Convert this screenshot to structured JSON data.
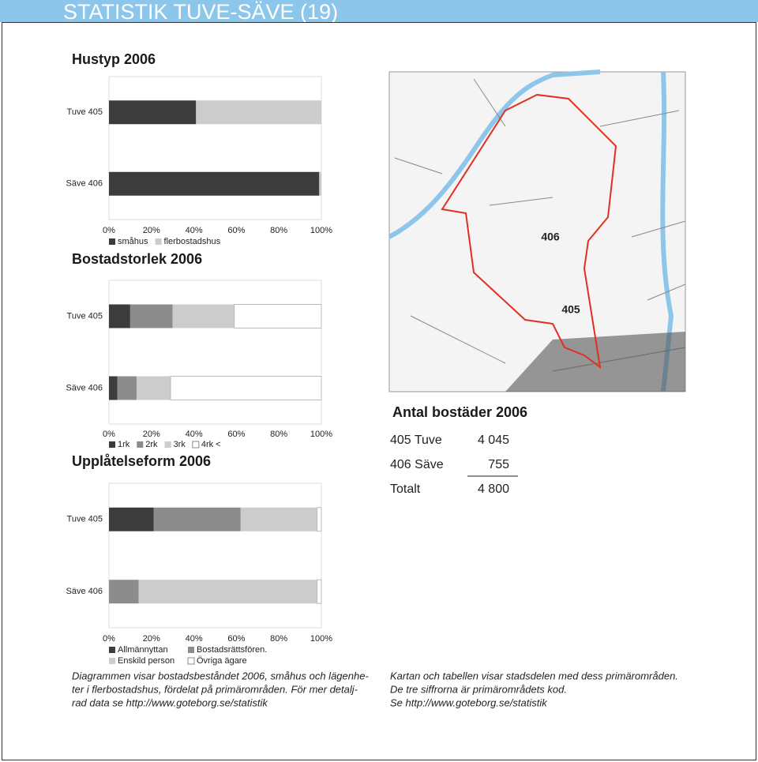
{
  "header": {
    "title": "STATISTIK TUVE-SÄVE (19)"
  },
  "chart_data": [
    {
      "type": "bar",
      "orientation": "horizontal",
      "stacked": true,
      "title": "Hustyp 2006",
      "categories": [
        "Tuve 405",
        "Säve 406"
      ],
      "series": [
        {
          "name": "småhus",
          "color": "#3c3c3c",
          "values": [
            41,
            99
          ]
        },
        {
          "name": "flerbostadshus",
          "color": "#cccccc",
          "values": [
            59,
            1
          ]
        }
      ],
      "xlim": [
        0,
        100
      ],
      "xticks": [
        {
          "value": 0,
          "label": "0%"
        },
        {
          "value": 20,
          "label": "20%"
        },
        {
          "value": 40,
          "label": "40%"
        },
        {
          "value": 60,
          "label": "60%"
        },
        {
          "value": 80,
          "label": "80%"
        },
        {
          "value": 100,
          "label": "100%"
        }
      ]
    },
    {
      "type": "bar",
      "orientation": "horizontal",
      "stacked": true,
      "title": "Bostadstorlek 2006",
      "categories": [
        "Tuve 405",
        "Säve 406"
      ],
      "series": [
        {
          "name": "1rk",
          "color": "#3c3c3c",
          "values": [
            10,
            4
          ]
        },
        {
          "name": "2rk",
          "color": "#8c8c8c",
          "values": [
            20,
            9
          ]
        },
        {
          "name": "3rk",
          "color": "#cccccc",
          "values": [
            29,
            16
          ]
        },
        {
          "name": "4rk <",
          "color": "#ffffff",
          "values": [
            41,
            71
          ]
        }
      ],
      "xlim": [
        0,
        100
      ],
      "xticks": [
        {
          "value": 0,
          "label": "0%"
        },
        {
          "value": 20,
          "label": "20%"
        },
        {
          "value": 40,
          "label": "40%"
        },
        {
          "value": 60,
          "label": "60%"
        },
        {
          "value": 80,
          "label": "80%"
        },
        {
          "value": 100,
          "label": "100%"
        }
      ]
    },
    {
      "type": "bar",
      "orientation": "horizontal",
      "stacked": true,
      "title": "Upplåtelseform 2006",
      "categories": [
        "Tuve 405",
        "Säve 406"
      ],
      "series": [
        {
          "name": "Allmännyttan",
          "color": "#3c3c3c",
          "values": [
            21,
            0
          ]
        },
        {
          "name": "Bostadsrättsfören.",
          "color": "#8c8c8c",
          "values": [
            41,
            14
          ]
        },
        {
          "name": "Enskild person",
          "color": "#cccccc",
          "values": [
            36,
            84
          ]
        },
        {
          "name": "Övriga ägare",
          "color": "#ffffff",
          "values": [
            2,
            2
          ]
        }
      ],
      "xlim": [
        0,
        100
      ],
      "xticks": [
        {
          "value": 0,
          "label": "0%"
        },
        {
          "value": 20,
          "label": "20%"
        },
        {
          "value": 40,
          "label": "40%"
        },
        {
          "value": 60,
          "label": "60%"
        },
        {
          "value": 80,
          "label": "80%"
        },
        {
          "value": 100,
          "label": "100%"
        }
      ]
    }
  ],
  "map": {
    "labels": [
      "406",
      "405"
    ]
  },
  "table": {
    "title": "Antal bostäder 2006",
    "rows": [
      [
        "405 Tuve",
        "4 045"
      ],
      [
        "406 Säve",
        "755"
      ],
      [
        "Totalt",
        "4 800"
      ]
    ]
  },
  "captions": {
    "left": [
      "Diagrammen visar bostadsbeståndet 2006, småhus och lägenhe-",
      "ter i flerbostadshus, fördelat på primärområden. För mer detalj-",
      "rad data se http://www.goteborg.se/statistik"
    ],
    "right": [
      "Kartan och tabellen visar stadsdelen med dess primärområden.",
      "De tre siffrorna är primärområdets kod.",
      "Se http://www.goteborg.se/statistik"
    ]
  }
}
